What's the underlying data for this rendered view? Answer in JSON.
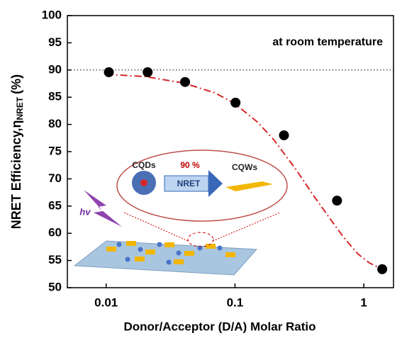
{
  "chart_data": {
    "type": "scatter",
    "x_label": "Donor/Acceptor (D/A) Molar Ratio",
    "y_label": {
      "main": "NRET Efficiency,η",
      "sub": "NRET",
      "unit": "(%)"
    },
    "annotation": "at room temperature",
    "x": [
      0.0105,
      0.021,
      0.041,
      0.101,
      0.24,
      0.62,
      1.39
    ],
    "values": [
      89.6,
      89.6,
      87.8,
      84.0,
      78.0,
      66.0,
      53.4
    ],
    "color": "#000000",
    "fit": {
      "x": [
        0.01,
        0.02,
        0.04,
        0.07,
        0.1,
        0.15,
        0.2,
        0.3,
        0.4,
        0.55,
        0.7,
        0.9,
        1.1,
        1.4
      ],
      "values": [
        89.2,
        88.8,
        87.6,
        85.8,
        83.8,
        80.4,
        77.2,
        71.6,
        67.2,
        62.6,
        59.2,
        56.2,
        54.6,
        53.3
      ],
      "color": "#d62728"
    },
    "reference_line": 90,
    "xlog": true,
    "xlim": [
      0.005,
      1.7
    ],
    "xticks": [
      0.01,
      0.1,
      1
    ],
    "ylim": [
      50,
      100
    ],
    "yticks": [
      50,
      55,
      60,
      65,
      70,
      75,
      80,
      85,
      90,
      95,
      100
    ],
    "inset": {
      "donor": "CQDs",
      "efficiency": "90 %",
      "process": "NRET",
      "acceptor": "CQWs",
      "light": "hv"
    }
  }
}
